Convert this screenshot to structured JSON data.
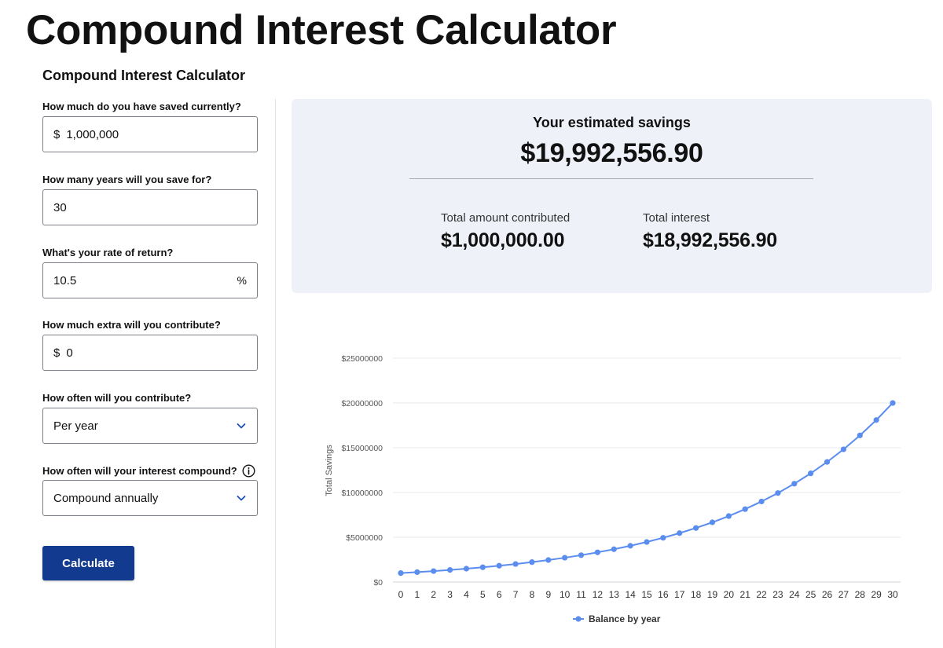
{
  "page": {
    "title": "Compound Interest Calculator"
  },
  "form": {
    "title": "Compound Interest Calculator",
    "savings": {
      "label": "How much do you have saved currently?",
      "prefix": "$",
      "value": "1,000,000"
    },
    "years": {
      "label": "How many years will you save for?",
      "value": "30"
    },
    "rate": {
      "label": "What's your rate of return?",
      "value": "10.5",
      "suffix": "%"
    },
    "extra": {
      "label": "How much extra will you contribute?",
      "prefix": "$",
      "value": "0"
    },
    "frequency": {
      "label": "How often will you contribute?",
      "value": "Per year"
    },
    "compound": {
      "label": "How often will your interest compound?",
      "value": "Compound annually"
    },
    "calculate_label": "Calculate"
  },
  "summary": {
    "heading": "Your estimated savings",
    "total": "$19,992,556.90",
    "contributed_label": "Total amount contributed",
    "contributed_value": "$1,000,000.00",
    "interest_label": "Total interest",
    "interest_value": "$18,992,556.90"
  },
  "colors": {
    "accent": "#123a8f",
    "series": "#5b8def",
    "panel": "#eef2f8"
  },
  "chart_data": {
    "type": "line",
    "ylabel": "Total Savings",
    "xlabel": "",
    "ylim": [
      0,
      25000000
    ],
    "yticks": [
      0,
      5000000,
      10000000,
      15000000,
      20000000,
      25000000
    ],
    "ytick_labels": [
      "$0",
      "$5000000",
      "$10000000",
      "$15000000",
      "$20000000",
      "$25000000"
    ],
    "grid": true,
    "legend": "bottom-center",
    "x": [
      "0",
      "1",
      "2",
      "3",
      "4",
      "5",
      "6",
      "7",
      "8",
      "9",
      "10",
      "11",
      "12",
      "13",
      "14",
      "15",
      "16",
      "17",
      "18",
      "19",
      "20",
      "21",
      "22",
      "23",
      "24",
      "25",
      "26",
      "27",
      "28",
      "29",
      "30"
    ],
    "series": [
      {
        "name": "Balance by year",
        "values": [
          1000000,
          1105000,
          1221025,
          1349233,
          1490902,
          1647447,
          1820429,
          2011574,
          2222789,
          2456182,
          2714081,
          2999060,
          3313961,
          3661927,
          4046429,
          4471304,
          4940791,
          5459574,
          6032830,
          6666277,
          7366236,
          8139691,
          8994359,
          9938767,
          10982337,
          12135482,
          13409708,
          14817727,
          16373588,
          18092815,
          19992557
        ]
      }
    ]
  }
}
